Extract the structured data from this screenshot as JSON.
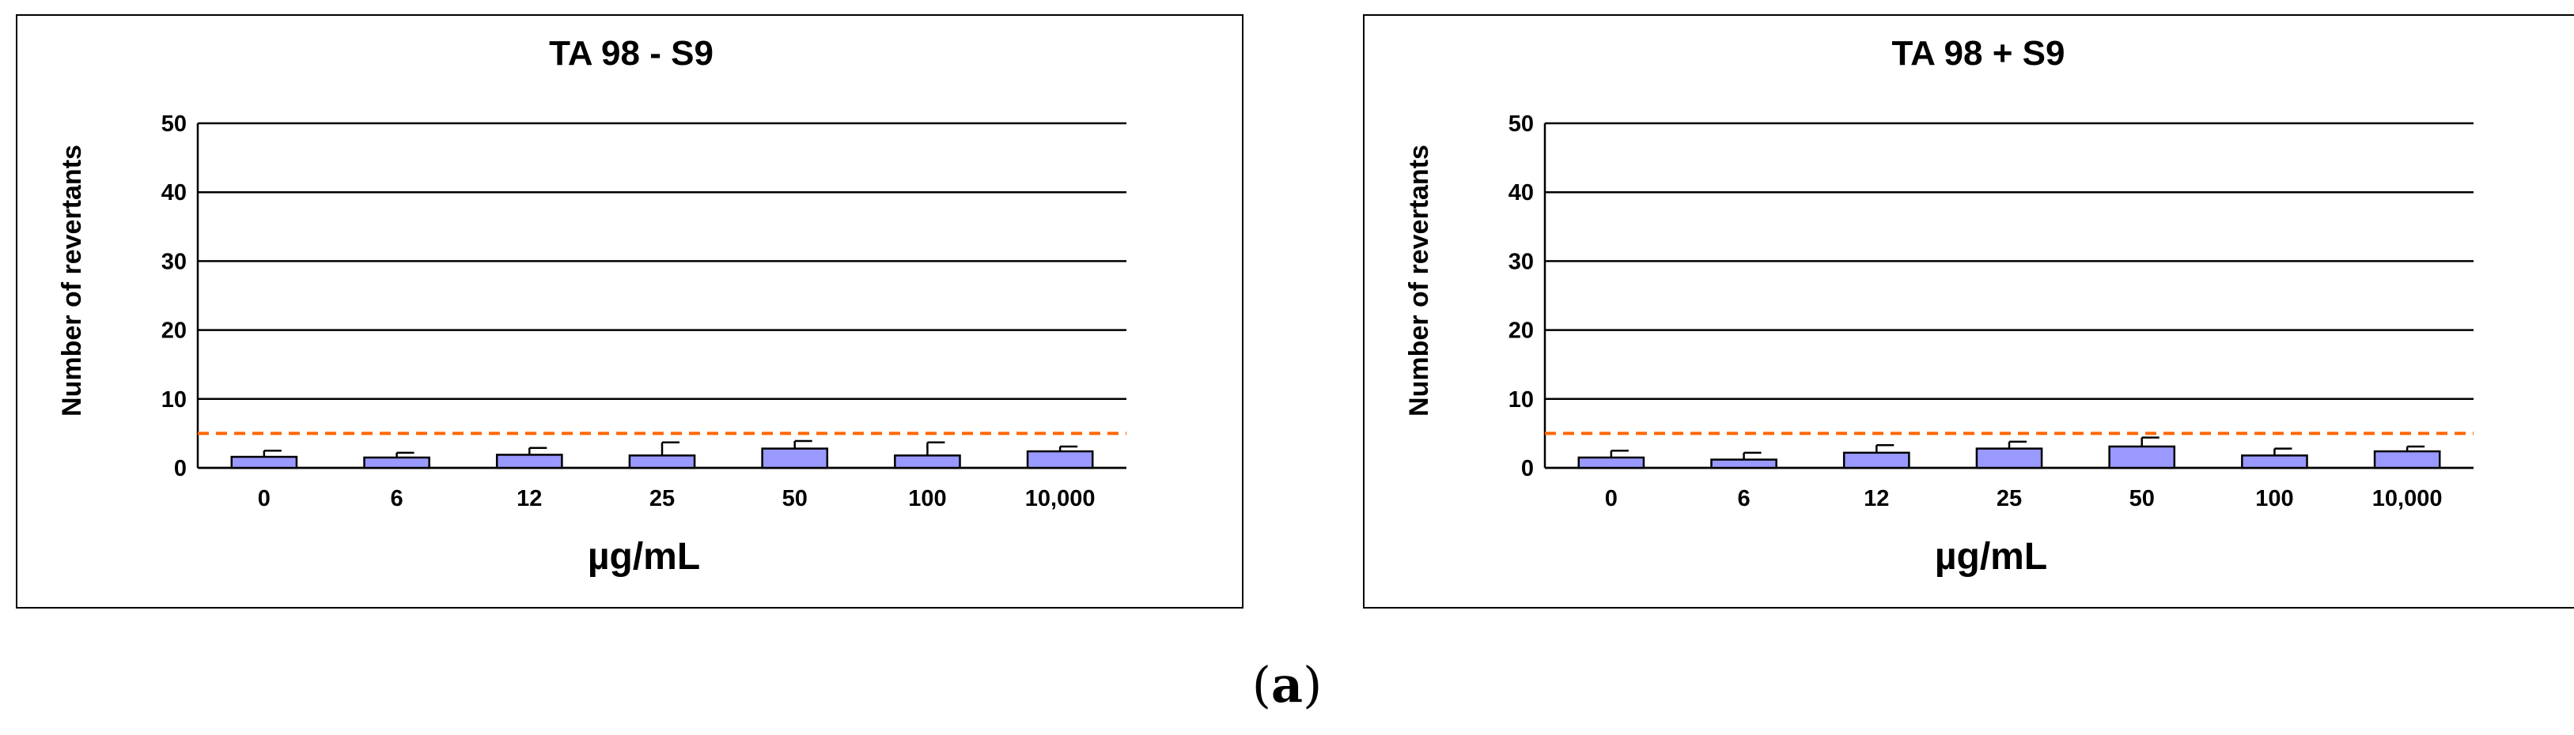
{
  "caption": {
    "open": "(",
    "letter": "a",
    "close": ")"
  },
  "colors": {
    "bar": "#9999ff",
    "bar_stroke": "#000000",
    "threshold": "#ff6600",
    "grid": "#000000"
  },
  "chart_data": [
    {
      "type": "bar",
      "title": "TA 98 - S9",
      "xlabel": "µg/mL",
      "ylabel": "Number of revertants",
      "categories": [
        "0",
        "6",
        "12",
        "25",
        "50",
        "100",
        "10,000"
      ],
      "values": [
        1.6,
        1.5,
        1.9,
        1.8,
        2.8,
        1.8,
        2.4
      ],
      "errors": [
        0.9,
        0.7,
        1.0,
        1.9,
        1.1,
        1.9,
        0.7
      ],
      "threshold": 5,
      "ylim": [
        0,
        50
      ],
      "yticks": [
        "0",
        "10",
        "20",
        "30",
        "40",
        "50"
      ],
      "grid": true
    },
    {
      "type": "bar",
      "title": "TA 98 + S9",
      "xlabel": "µg/mL",
      "ylabel": "Number of revertants",
      "categories": [
        "0",
        "6",
        "12",
        "25",
        "50",
        "100",
        "10,000"
      ],
      "values": [
        1.5,
        1.2,
        2.2,
        2.8,
        3.1,
        1.8,
        2.4
      ],
      "errors": [
        1.0,
        1.0,
        1.1,
        1.0,
        1.3,
        1.0,
        0.7
      ],
      "threshold": 5,
      "ylim": [
        0,
        50
      ],
      "yticks": [
        "0",
        "10",
        "20",
        "30",
        "40",
        "50"
      ],
      "grid": true
    }
  ]
}
